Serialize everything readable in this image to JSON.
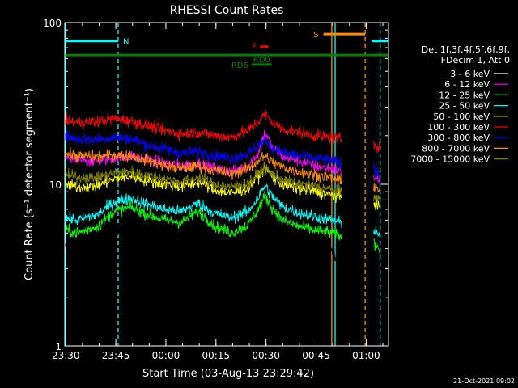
{
  "chart_data": {
    "type": "line",
    "title": "RHESSI Count Rates",
    "xlabel": "Start Time (03-Aug-13 23:29:42)",
    "ylabel": "Count Rate (s⁻¹ detector segment⁻¹)",
    "yscale": "log",
    "ylim": [
      1,
      100
    ],
    "xlim_minutes": [
      0,
      97
    ],
    "x_unit": "minutes after 23:29:42",
    "x_ticks": [
      "23:30",
      "23:45",
      "00:00",
      "00:15",
      "00:30",
      "00:45",
      "01:00"
    ],
    "y_ticks": [
      "1",
      "10",
      "100"
    ],
    "data_gaps": [
      [
        83,
        92.5
      ]
    ],
    "legend_header": [
      "Det 1f,3f,4f,5f,6f,9f,",
      "FDecim 1, Att 0"
    ],
    "legend_position": "right",
    "series": [
      {
        "name": "3 - 6 keV",
        "color": "#000000",
        "x": [
          0,
          4,
          10,
          15,
          20,
          25,
          30,
          35,
          40,
          45,
          50,
          55,
          58,
          60,
          62,
          65,
          70,
          75,
          80,
          82.5,
          93,
          94.5
        ],
        "y": [
          4.0,
          3.8,
          4.2,
          5.5,
          5.8,
          5.3,
          4.8,
          4.5,
          6.2,
          4.3,
          3.9,
          4.2,
          5.3,
          7.0,
          5.6,
          4.6,
          4.2,
          4.0,
          3.8,
          3.7,
          3.3,
          3.0
        ]
      },
      {
        "name": "6 - 12 keV",
        "color": "#ff00ff",
        "x": [
          0,
          4,
          10,
          15,
          20,
          25,
          30,
          35,
          40,
          45,
          50,
          55,
          58,
          60,
          62,
          65,
          70,
          75,
          80,
          82.5,
          93,
          94.5
        ],
        "y": [
          14.5,
          14.0,
          14.0,
          14.5,
          15.0,
          14.2,
          13.5,
          13.0,
          13.5,
          12.5,
          12.0,
          13.0,
          15.5,
          21.0,
          17.0,
          15.0,
          14.0,
          13.0,
          12.5,
          12.0,
          11.0,
          10.5
        ]
      },
      {
        "name": "12 - 25 keV",
        "color": "#00ff00",
        "x": [
          0,
          4,
          10,
          15,
          20,
          25,
          30,
          35,
          40,
          45,
          50,
          55,
          58,
          60,
          62,
          65,
          70,
          75,
          80,
          82.5,
          93,
          94.5
        ],
        "y": [
          5.2,
          5.0,
          5.5,
          6.8,
          7.2,
          6.5,
          6.0,
          5.8,
          6.8,
          5.5,
          5.0,
          5.6,
          7.0,
          8.5,
          7.2,
          6.0,
          5.5,
          5.2,
          5.0,
          4.8,
          4.3,
          4.0
        ]
      },
      {
        "name": "25 - 50 keV",
        "color": "#00ffff",
        "x": [
          0,
          4,
          10,
          15,
          20,
          25,
          30,
          35,
          40,
          45,
          50,
          55,
          58,
          60,
          62,
          65,
          70,
          75,
          80,
          82.5,
          93,
          94.5
        ],
        "y": [
          6.2,
          6.0,
          6.5,
          7.8,
          8.2,
          7.5,
          7.0,
          6.8,
          7.6,
          6.6,
          6.2,
          6.8,
          8.3,
          9.8,
          8.5,
          7.3,
          6.7,
          6.3,
          6.0,
          5.8,
          5.2,
          4.9
        ]
      },
      {
        "name": "50 - 100 keV",
        "color": "#ffff00",
        "x": [
          0,
          4,
          10,
          15,
          20,
          25,
          30,
          35,
          40,
          45,
          50,
          55,
          58,
          60,
          62,
          65,
          70,
          75,
          80,
          82.5,
          93,
          94.5
        ],
        "y": [
          10.0,
          9.6,
          9.8,
          10.8,
          11.2,
          10.5,
          10.0,
          9.6,
          10.3,
          9.2,
          8.8,
          9.5,
          11.2,
          12.6,
          11.2,
          10.0,
          9.4,
          9.0,
          8.6,
          8.3,
          7.6,
          7.2
        ]
      },
      {
        "name": "100 - 300 keV",
        "color": "#ff0000",
        "x": [
          0,
          4,
          10,
          15,
          20,
          25,
          30,
          35,
          40,
          45,
          50,
          55,
          58,
          60,
          62,
          65,
          70,
          75,
          80,
          82.5,
          93,
          94.5
        ],
        "y": [
          25.0,
          24.0,
          24.5,
          25.5,
          24.5,
          23.0,
          21.5,
          20.5,
          21.0,
          20.0,
          19.5,
          21.5,
          24.5,
          27.0,
          24.5,
          22.0,
          21.0,
          20.0,
          19.5,
          19.0,
          18.0,
          16.5
        ]
      },
      {
        "name": "300 - 800 keV",
        "color": "#0000ff",
        "x": [
          0,
          4,
          10,
          15,
          20,
          25,
          30,
          35,
          40,
          45,
          50,
          55,
          58,
          60,
          62,
          65,
          70,
          75,
          80,
          82.5,
          93,
          94.5
        ],
        "y": [
          20.0,
          19.0,
          19.0,
          19.5,
          19.0,
          17.5,
          16.5,
          15.5,
          16.0,
          15.0,
          14.5,
          15.5,
          17.5,
          18.5,
          17.0,
          15.8,
          15.0,
          14.5,
          14.0,
          13.5,
          12.5,
          11.5
        ]
      },
      {
        "name": "800 - 7000 keV",
        "color": "#ff8c00",
        "x": [
          0,
          4,
          10,
          15,
          20,
          25,
          30,
          35,
          40,
          45,
          50,
          55,
          58,
          60,
          62,
          65,
          70,
          75,
          80,
          82.5,
          93,
          94.5
        ],
        "y": [
          15.5,
          15.0,
          14.8,
          15.2,
          15.0,
          14.0,
          13.0,
          12.5,
          13.0,
          12.2,
          11.6,
          12.5,
          14.0,
          15.0,
          13.8,
          12.8,
          12.0,
          11.5,
          11.0,
          10.5,
          9.8,
          9.2
        ]
      },
      {
        "name": "7000 - 15000 keV",
        "color": "#808000",
        "x": [
          0,
          4,
          10,
          15,
          20,
          25,
          30,
          35,
          40,
          45,
          50,
          55,
          58,
          60,
          62,
          65,
          70,
          75,
          80,
          82.5,
          93,
          94.5
        ],
        "y": [
          11.5,
          11.0,
          11.0,
          11.8,
          12.0,
          11.3,
          10.8,
          10.3,
          11.0,
          10.0,
          9.6,
          10.3,
          11.6,
          12.8,
          11.6,
          10.7,
          10.1,
          9.7,
          9.3,
          9.0,
          8.4,
          7.9
        ]
      }
    ],
    "flag_bars": [
      {
        "label": "N",
        "color": "#00ffff",
        "x": [
          0,
          16
        ],
        "y": 77
      },
      {
        "label": "RD6",
        "color": "#008000",
        "x": [
          0,
          97
        ],
        "y": 63
      },
      {
        "label": "RD0",
        "color": "#008000",
        "x": [
          56,
          62
        ],
        "y": 55
      },
      {
        "label": "F",
        "color": "#ff0000",
        "x": [
          58.5,
          61
        ],
        "y": 71
      },
      {
        "label": "S",
        "color": "#ff8c00",
        "x": [
          77.5,
          90
        ],
        "y": 85
      },
      {
        "label": "",
        "color": "#00ffff",
        "x": [
          92,
          97
        ],
        "y": 77
      }
    ],
    "vertical_markers": [
      {
        "x": 0,
        "color": "#00ffff",
        "style": "solid"
      },
      {
        "x": 16,
        "color": "#00ffff",
        "style": "dashed"
      },
      {
        "x": 80,
        "color": "#ff8c00",
        "style": "solid"
      },
      {
        "x": 81,
        "color": "#00ffff",
        "style": "solid"
      },
      {
        "x": 90,
        "color": "#ff8c00",
        "style": "dashed"
      },
      {
        "x": 94.5,
        "color": "#00ffff",
        "style": "dashed"
      }
    ],
    "footer_date": "21-Oct-2021 09:02"
  }
}
